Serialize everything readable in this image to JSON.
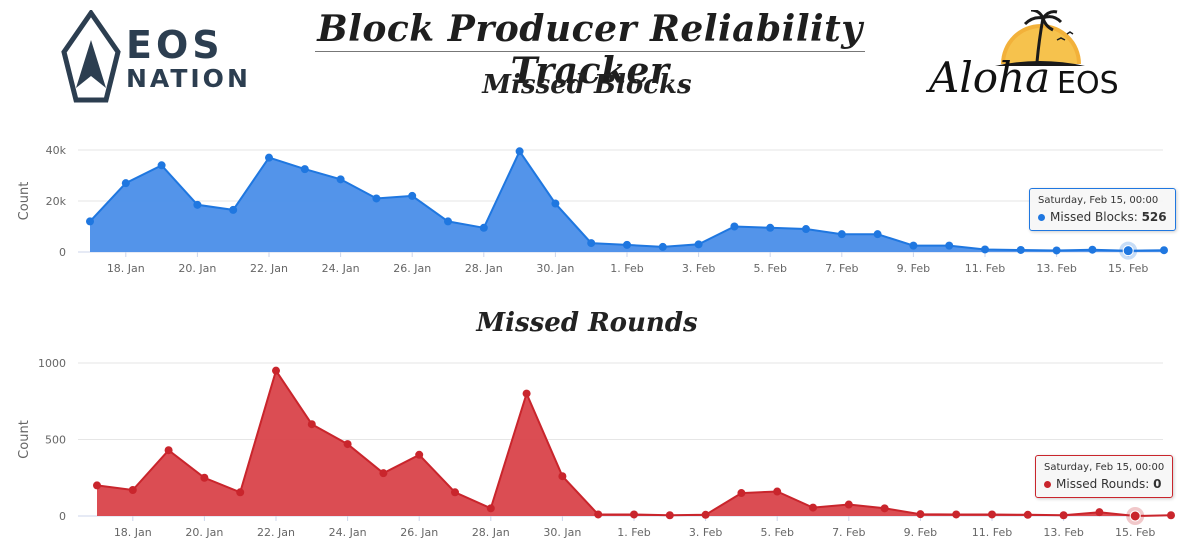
{
  "header": {
    "title": "Block Producer Reliability Tracker"
  },
  "logos": {
    "left": {
      "line1": "EOS",
      "line2": "NATION",
      "icon": "eos-triangle-icon"
    },
    "right": {
      "script": "Aloha",
      "word": "EOS",
      "icon": "palm-sunset-icon"
    }
  },
  "chart_data": [
    {
      "type": "area",
      "title": "Missed Blocks",
      "ylabel": "Count",
      "color": "#1f77e0",
      "fill": "#4a8ee9",
      "ylim": [
        0,
        40000
      ],
      "yticks": [
        0,
        20000,
        40000
      ],
      "ytick_labels": [
        "0",
        "20k",
        "40k"
      ],
      "xtick_labels": [
        "18. Jan",
        "20. Jan",
        "22. Jan",
        "24. Jan",
        "26. Jan",
        "28. Jan",
        "30. Jan",
        "1. Feb",
        "3. Feb",
        "5. Feb",
        "7. Feb",
        "9. Feb",
        "11. Feb",
        "13. Feb",
        "15. Feb"
      ],
      "x": [
        "2020-01-17",
        "2020-01-18",
        "2020-01-19",
        "2020-01-20",
        "2020-01-21",
        "2020-01-22",
        "2020-01-23",
        "2020-01-24",
        "2020-01-25",
        "2020-01-26",
        "2020-01-27",
        "2020-01-28",
        "2020-01-29",
        "2020-01-30",
        "2020-01-31",
        "2020-02-01",
        "2020-02-02",
        "2020-02-03",
        "2020-02-04",
        "2020-02-05",
        "2020-02-06",
        "2020-02-07",
        "2020-02-08",
        "2020-02-09",
        "2020-02-10",
        "2020-02-11",
        "2020-02-12",
        "2020-02-13",
        "2020-02-14",
        "2020-02-15",
        "2020-02-16"
      ],
      "series": [
        {
          "name": "Missed Blocks",
          "values": [
            12000,
            27000,
            34000,
            18500,
            16500,
            37000,
            32500,
            28500,
            21000,
            22000,
            12000,
            9500,
            39500,
            19000,
            3500,
            2800,
            2000,
            3000,
            10000,
            9500,
            9000,
            7000,
            7000,
            2500,
            2500,
            1000,
            800,
            600,
            900,
            526,
            700
          ]
        }
      ],
      "tooltip": {
        "date": "Saturday, Feb 15, 00:00",
        "label": "Missed Blocks",
        "value": "526"
      }
    },
    {
      "type": "area",
      "title": "Missed Rounds",
      "ylabel": "Count",
      "color": "#c9252c",
      "fill": "#d9434a",
      "ylim": [
        0,
        1000
      ],
      "yticks": [
        0,
        500,
        1000
      ],
      "ytick_labels": [
        "0",
        "500",
        "1000"
      ],
      "xtick_labels": [
        "18. Jan",
        "20. Jan",
        "22. Jan",
        "24. Jan",
        "26. Jan",
        "28. Jan",
        "30. Jan",
        "1. Feb",
        "3. Feb",
        "5. Feb",
        "7. Feb",
        "9. Feb",
        "11. Feb",
        "13. Feb",
        "15. Feb"
      ],
      "x": [
        "2020-01-17",
        "2020-01-18",
        "2020-01-19",
        "2020-01-20",
        "2020-01-21",
        "2020-01-22",
        "2020-01-23",
        "2020-01-24",
        "2020-01-25",
        "2020-01-26",
        "2020-01-27",
        "2020-01-28",
        "2020-01-29",
        "2020-01-30",
        "2020-01-31",
        "2020-02-01",
        "2020-02-02",
        "2020-02-03",
        "2020-02-04",
        "2020-02-05",
        "2020-02-06",
        "2020-02-07",
        "2020-02-08",
        "2020-02-09",
        "2020-02-10",
        "2020-02-11",
        "2020-02-12",
        "2020-02-13",
        "2020-02-14",
        "2020-02-15",
        "2020-02-16"
      ],
      "series": [
        {
          "name": "Missed Rounds",
          "values": [
            200,
            170,
            430,
            250,
            155,
            950,
            600,
            470,
            280,
            400,
            155,
            50,
            800,
            260,
            10,
            10,
            5,
            8,
            150,
            160,
            55,
            75,
            50,
            12,
            10,
            10,
            8,
            5,
            25,
            0,
            5
          ]
        }
      ],
      "tooltip": {
        "date": "Saturday, Feb 15, 00:00",
        "label": "Missed Rounds",
        "value": "0"
      }
    }
  ]
}
